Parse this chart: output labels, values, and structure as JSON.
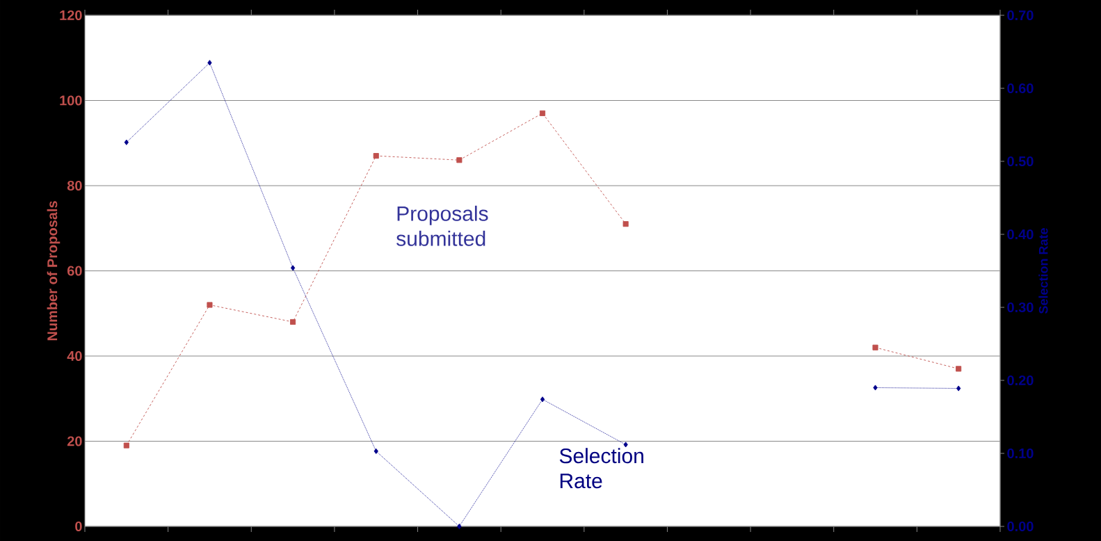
{
  "chart_data": {
    "type": "line",
    "categories": [
      null,
      null,
      null,
      null,
      null,
      null,
      null,
      null,
      null,
      null,
      null
    ],
    "series": [
      {
        "color": "#c0504d",
        "marker": "square",
        "line_style": "dashed",
        "values": [
          19,
          52,
          48,
          87,
          86,
          97,
          71,
          null,
          null,
          null,
          null
        ]
      },
      {
        "color": "#c0504d",
        "marker": "square",
        "line_style": "dashed",
        "values": [
          null,
          null,
          null,
          null,
          null,
          null,
          null,
          null,
          null,
          42,
          37
        ]
      },
      {
        "color": "#00008b",
        "marker": "diamond",
        "line_style": "dotted",
        "axis": "y2",
        "values": [
          0.526,
          0.635,
          0.354,
          0.103,
          0.0,
          0.174,
          0.112,
          null,
          null,
          null,
          null
        ]
      },
      {
        "color": "#00008b",
        "marker": "diamond",
        "line_style": "dotted",
        "axis": "y2",
        "values": [
          null,
          null,
          null,
          null,
          null,
          null,
          null,
          null,
          null,
          0.19,
          0.189
        ]
      }
    ],
    "ylabel": "Number of Proposals",
    "y2label": "Selection Rate",
    "ylim": [
      0,
      120
    ],
    "yticks": [
      0,
      20,
      40,
      60,
      80,
      100,
      120
    ],
    "y2lim": [
      0,
      0.7
    ],
    "y2ticks": [
      {
        "value": 0,
        "label": "0.00"
      },
      {
        "value": 0.1,
        "label": "0.10"
      },
      {
        "value": 0.2,
        "label": "0.20"
      },
      {
        "value": 0.3,
        "label": "0.30"
      },
      {
        "value": 0.4,
        "label": "0.40"
      },
      {
        "value": 0.5,
        "label": "0.50"
      },
      {
        "value": 0.6,
        "label": "0.60"
      },
      {
        "value": 0.7,
        "label": "0.70"
      }
    ],
    "grid": "y",
    "annotations": [
      "Proposals submitted",
      "Selection Rate"
    ]
  }
}
